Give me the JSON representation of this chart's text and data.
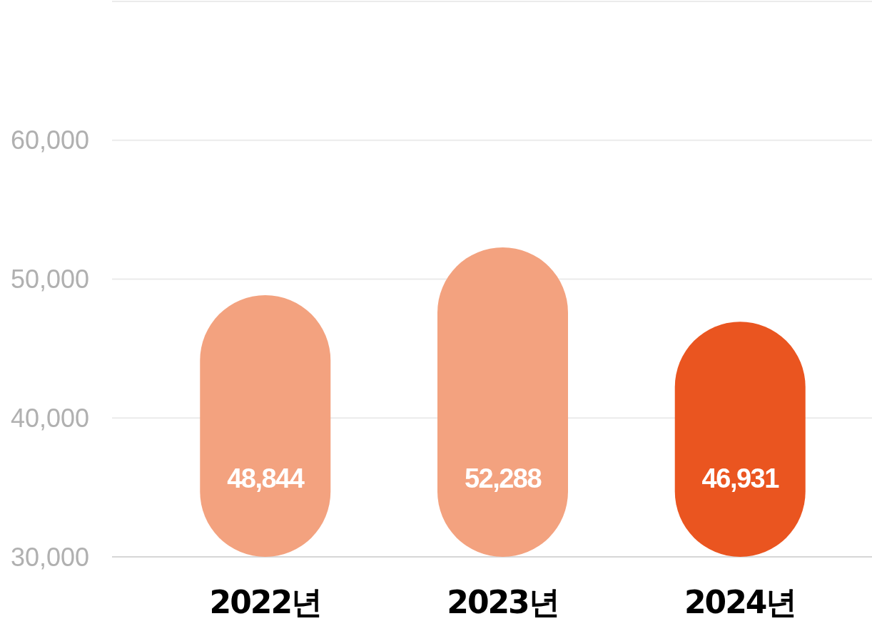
{
  "chart_data": {
    "type": "bar",
    "categories": [
      "2022년",
      "2023년",
      "2024년"
    ],
    "values": [
      48844,
      52288,
      46931
    ],
    "colors": [
      "#f3a27f",
      "#f3a27f",
      "#ea5520"
    ],
    "ylim": [
      30000,
      70000
    ],
    "yticks": [
      {
        "value": 30000,
        "label": "30,000"
      },
      {
        "value": 40000,
        "label": "40,000"
      },
      {
        "value": 50000,
        "label": "50,000"
      },
      {
        "value": 60000,
        "label": "60,000"
      },
      {
        "value": 70000,
        "label": null
      }
    ],
    "value_labels": [
      "48,844",
      "52,288",
      "46,931"
    ],
    "grid": "y"
  }
}
